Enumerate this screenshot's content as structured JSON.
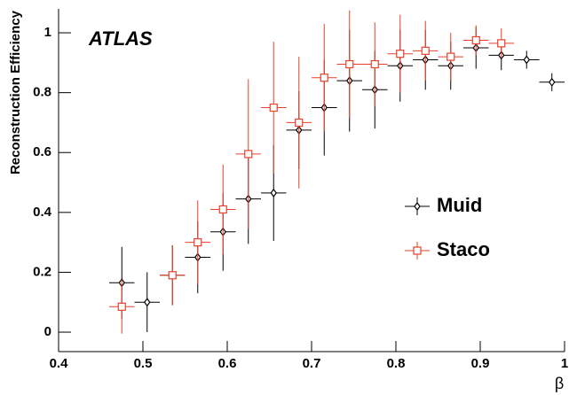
{
  "chart_data": {
    "type": "scatter",
    "annotation": "ATLAS",
    "x_label": "β",
    "y_label": "Reconstruction Efficiency",
    "xlim": [
      0.4,
      1.0
    ],
    "ylim": [
      -0.065,
      1.08
    ],
    "xticks": [
      0.4,
      0.5,
      0.6,
      0.7,
      0.8,
      0.9,
      1
    ],
    "yticks": [
      0,
      0.2,
      0.4,
      0.6,
      0.8,
      1
    ],
    "series": [
      {
        "name": "Muid",
        "color": "#000000",
        "marker": "diamond",
        "xerr": 0.015,
        "x": [
          0.475,
          0.505,
          0.535,
          0.565,
          0.595,
          0.625,
          0.655,
          0.685,
          0.715,
          0.745,
          0.775,
          0.805,
          0.835,
          0.865,
          0.895,
          0.925,
          0.955,
          0.985
        ],
        "values": [
          0.165,
          0.1,
          0.19,
          0.25,
          0.335,
          0.445,
          0.465,
          0.675,
          0.75,
          0.84,
          0.81,
          0.89,
          0.91,
          0.89,
          0.95,
          0.925,
          0.91,
          0.835
        ],
        "errors": [
          0.12,
          0.1,
          0.1,
          0.12,
          0.13,
          0.15,
          0.16,
          0.13,
          0.16,
          0.17,
          0.13,
          0.12,
          0.1,
          0.08,
          0.07,
          0.05,
          0.03,
          0.03
        ]
      },
      {
        "name": "Staco",
        "color": "#e8402a",
        "marker": "square",
        "xerr": 0.015,
        "x": [
          0.475,
          0.535,
          0.565,
          0.595,
          0.625,
          0.655,
          0.685,
          0.715,
          0.745,
          0.775,
          0.805,
          0.835,
          0.865,
          0.895,
          0.925
        ],
        "values": [
          0.085,
          0.19,
          0.3,
          0.41,
          0.595,
          0.75,
          0.7,
          0.85,
          0.895,
          0.895,
          0.93,
          0.94,
          0.92,
          0.975,
          0.965
        ],
        "errors": [
          0.09,
          0.1,
          0.14,
          0.15,
          0.25,
          0.22,
          0.22,
          0.18,
          0.18,
          0.14,
          0.13,
          0.1,
          0.08,
          0.05,
          0.05
        ]
      }
    ]
  }
}
